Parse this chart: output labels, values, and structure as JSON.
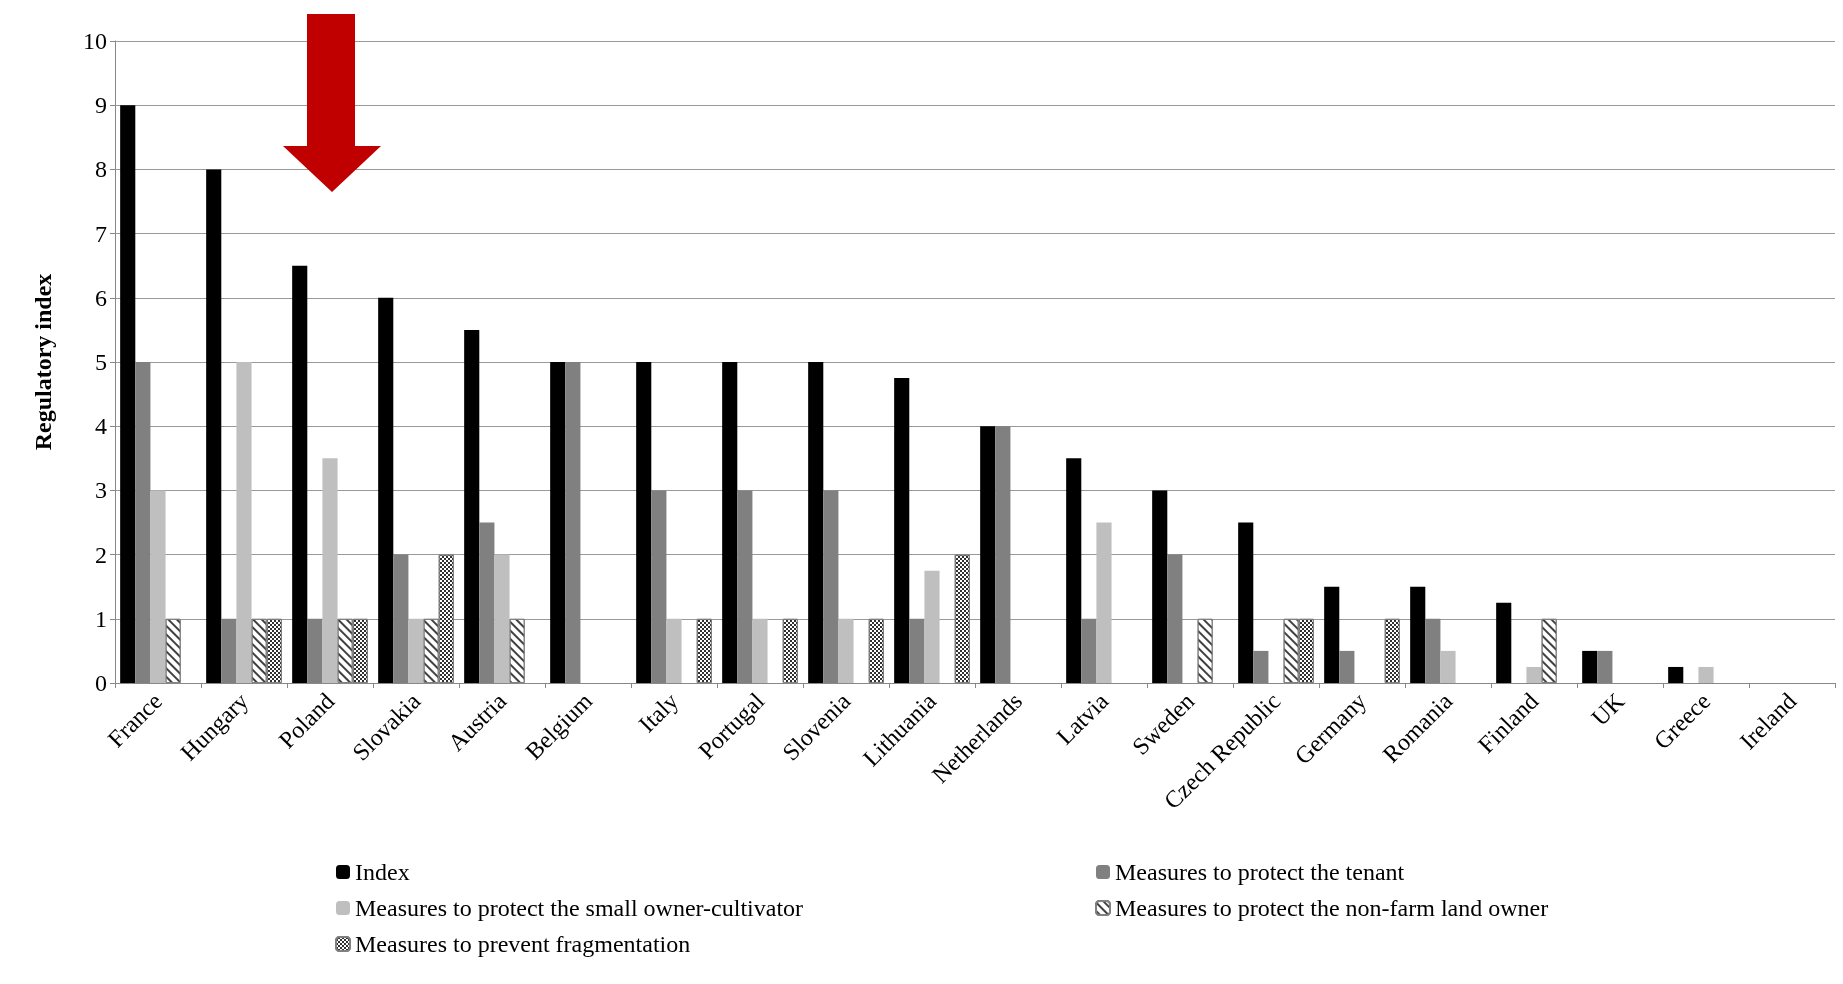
{
  "chart_data": {
    "type": "bar",
    "ylabel": "Regulatory index",
    "categories": [
      "France",
      "Hungary",
      "Poland",
      "Slovakia",
      "Austria",
      "Belgium",
      "Italy",
      "Portugal",
      "Slovenia",
      "Lithuania",
      "Netherlands",
      "Latvia",
      "Sweden",
      "Czech Republic",
      "Germany",
      "Romania",
      "Finland",
      "UK",
      "Greece",
      "Ireland"
    ],
    "series": [
      {
        "name": "Index",
        "color": "#000000",
        "values": [
          9,
          8,
          6.5,
          6,
          5.5,
          5,
          5,
          5,
          5,
          4.75,
          4,
          3.5,
          3,
          2.5,
          1.5,
          1.5,
          1.25,
          0.5,
          0.25,
          null
        ]
      },
      {
        "name": "Measures to protect the tenant",
        "color": "#808080",
        "values": [
          5,
          1,
          1,
          2,
          2.5,
          5,
          3,
          3,
          3,
          1,
          4,
          1,
          2,
          0.5,
          0.5,
          1,
          null,
          0.5,
          null,
          null
        ]
      },
      {
        "name": "Measures to protect the small owner-cultivator",
        "color": "#bfbfbf",
        "values": [
          3,
          5,
          3.5,
          1,
          2,
          null,
          1,
          1,
          1,
          1.75,
          null,
          2.5,
          null,
          null,
          null,
          0.5,
          0.25,
          null,
          0.25,
          null
        ]
      },
      {
        "name": "Measures to protect the non-farm land owner",
        "color": "#ffffff",
        "values": [
          1,
          1,
          1,
          1,
          1,
          null,
          null,
          null,
          null,
          null,
          null,
          null,
          1,
          1,
          null,
          null,
          1,
          null,
          null,
          null
        ]
      },
      {
        "name": "Measures to prevent fragmentation",
        "color": "#ffffff",
        "values": [
          null,
          1,
          1,
          2,
          null,
          null,
          1,
          1,
          1,
          2,
          null,
          null,
          null,
          1,
          1,
          null,
          null,
          null,
          null,
          null
        ]
      }
    ],
    "ylim": [
      0,
      10
    ],
    "yticks": [
      0,
      1,
      2,
      3,
      4,
      5,
      6,
      7,
      8,
      9,
      10
    ],
    "grid": "y",
    "legend": "bottom"
  }
}
